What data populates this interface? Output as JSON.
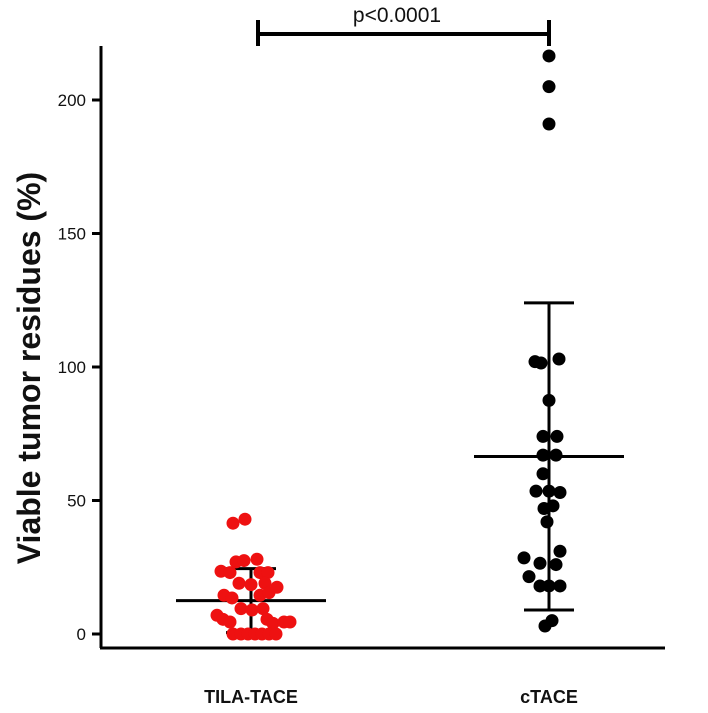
{
  "chart_data": {
    "type": "scatter",
    "ylabel": "Viable tumor residues (%)",
    "xlabel": "",
    "ylim": [
      -5,
      220
    ],
    "yticks": [
      0,
      50,
      100,
      150,
      200
    ],
    "ytick_labels": [
      "0",
      "50",
      "100",
      "150",
      "200"
    ],
    "categories": [
      "TILA-TACE",
      "cTACE"
    ],
    "annotation": "p<0.0001",
    "grid": false,
    "series": [
      {
        "category": "TILA-TACE",
        "color": "#ee1111",
        "mean": 12.5,
        "sd_low": 0.5,
        "sd_high": 24.5,
        "points": [
          {
            "offset": -0.18,
            "y": 41.5
          },
          {
            "offset": -0.06,
            "y": 43
          },
          {
            "offset": -0.15,
            "y": 27
          },
          {
            "offset": -0.07,
            "y": 27.5
          },
          {
            "offset": 0.06,
            "y": 28
          },
          {
            "offset": -0.3,
            "y": 23.5
          },
          {
            "offset": -0.21,
            "y": 23
          },
          {
            "offset": 0.09,
            "y": 23
          },
          {
            "offset": 0.17,
            "y": 23
          },
          {
            "offset": -0.12,
            "y": 19
          },
          {
            "offset": 0.0,
            "y": 18.5
          },
          {
            "offset": 0.14,
            "y": 19
          },
          {
            "offset": -0.27,
            "y": 14.5
          },
          {
            "offset": -0.19,
            "y": 13.5
          },
          {
            "offset": 0.09,
            "y": 14.5
          },
          {
            "offset": 0.18,
            "y": 15.5
          },
          {
            "offset": 0.26,
            "y": 17.5
          },
          {
            "offset": -0.1,
            "y": 9.5
          },
          {
            "offset": 0.01,
            "y": 9
          },
          {
            "offset": 0.12,
            "y": 9.5
          },
          {
            "offset": -0.34,
            "y": 7
          },
          {
            "offset": -0.28,
            "y": 5.5
          },
          {
            "offset": -0.21,
            "y": 4.5
          },
          {
            "offset": 0.16,
            "y": 5.5
          },
          {
            "offset": 0.22,
            "y": 4
          },
          {
            "offset": 0.33,
            "y": 4.5
          },
          {
            "offset": 0.39,
            "y": 4.5
          },
          {
            "offset": -0.18,
            "y": 0
          },
          {
            "offset": -0.1,
            "y": 0
          },
          {
            "offset": -0.03,
            "y": 0
          },
          {
            "offset": 0.04,
            "y": 0
          },
          {
            "offset": 0.11,
            "y": 0
          },
          {
            "offset": 0.18,
            "y": 0
          },
          {
            "offset": 0.25,
            "y": 0
          }
        ]
      },
      {
        "category": "cTACE",
        "color": "#000000",
        "mean": 66.5,
        "sd_low": 9,
        "sd_high": 124,
        "points": [
          {
            "offset": 0.0,
            "y": 216.5
          },
          {
            "offset": 0.0,
            "y": 205
          },
          {
            "offset": 0.0,
            "y": 191
          },
          {
            "offset": -0.14,
            "y": 102
          },
          {
            "offset": -0.08,
            "y": 101.5
          },
          {
            "offset": 0.1,
            "y": 103
          },
          {
            "offset": 0.0,
            "y": 87.5
          },
          {
            "offset": -0.06,
            "y": 74
          },
          {
            "offset": 0.08,
            "y": 74
          },
          {
            "offset": -0.06,
            "y": 67
          },
          {
            "offset": 0.07,
            "y": 67
          },
          {
            "offset": -0.06,
            "y": 60
          },
          {
            "offset": -0.13,
            "y": 53.5
          },
          {
            "offset": 0.0,
            "y": 53.5
          },
          {
            "offset": 0.11,
            "y": 53
          },
          {
            "offset": -0.05,
            "y": 47
          },
          {
            "offset": 0.04,
            "y": 48
          },
          {
            "offset": -0.02,
            "y": 42
          },
          {
            "offset": -0.25,
            "y": 28.5
          },
          {
            "offset": 0.11,
            "y": 31
          },
          {
            "offset": -0.09,
            "y": 26.5
          },
          {
            "offset": 0.07,
            "y": 26
          },
          {
            "offset": -0.2,
            "y": 21.5
          },
          {
            "offset": -0.09,
            "y": 18
          },
          {
            "offset": 0.0,
            "y": 18
          },
          {
            "offset": 0.11,
            "y": 18
          },
          {
            "offset": -0.04,
            "y": 3
          },
          {
            "offset": 0.03,
            "y": 5
          }
        ]
      }
    ]
  }
}
